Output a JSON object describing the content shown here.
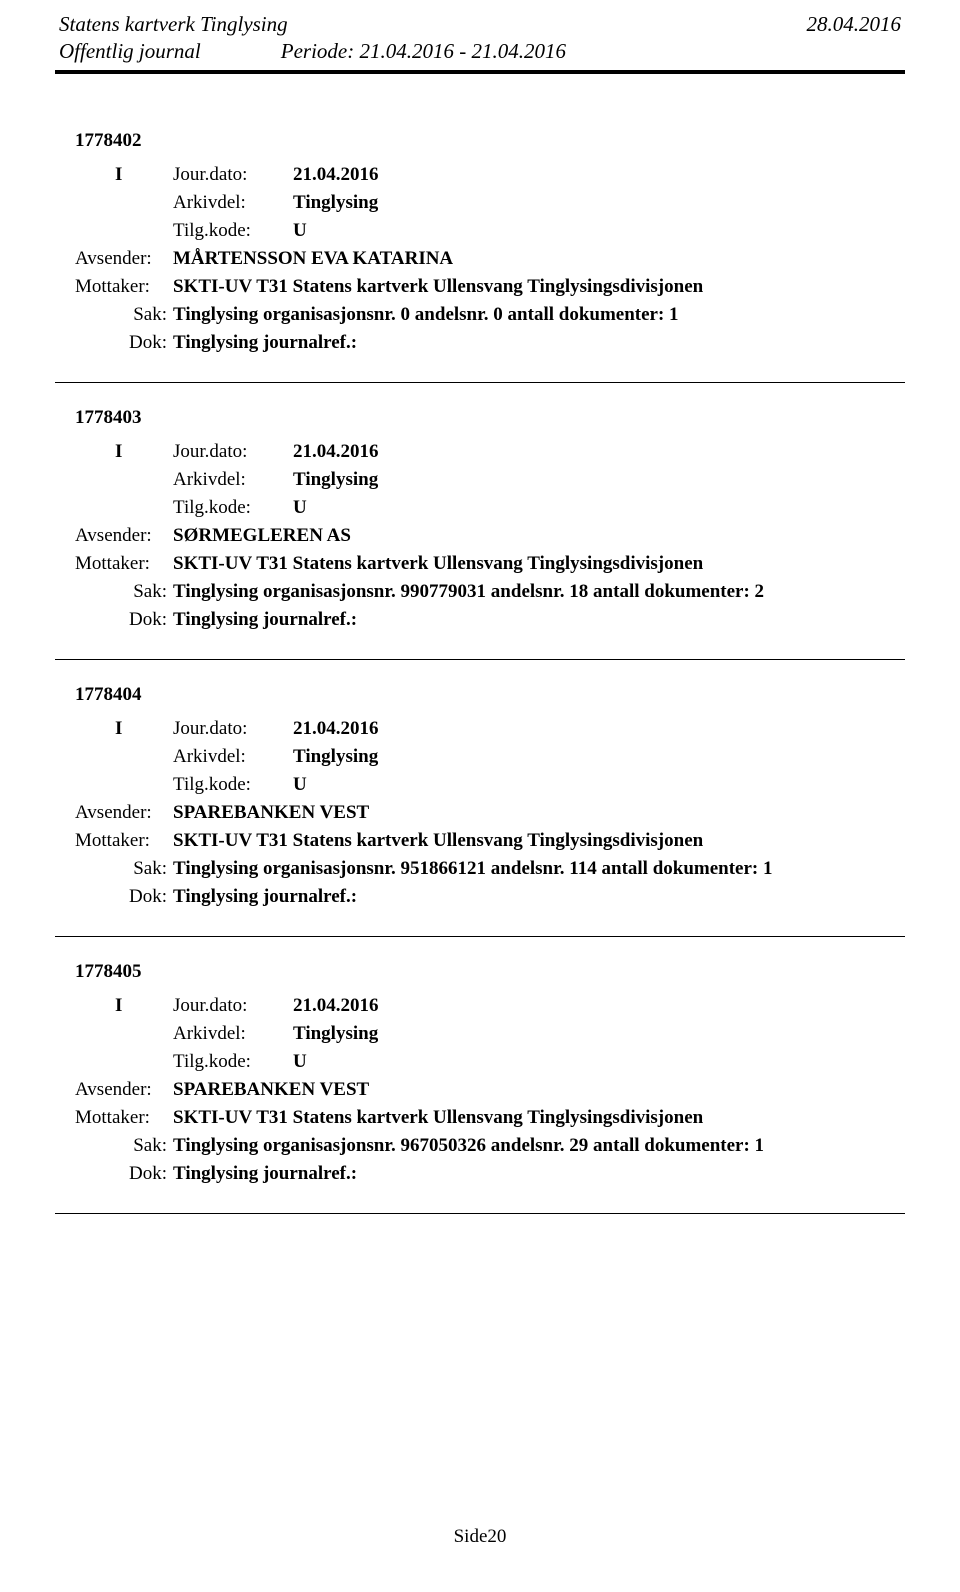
{
  "header": {
    "org": "Statens kartverk Tinglysing",
    "date": "28.04.2016",
    "journal": "Offentlig journal",
    "periode_label": "Periode:",
    "periode_value": "21.04.2016 - 21.04.2016"
  },
  "labels": {
    "jourdato": "Jour.dato:",
    "arkivdel": "Arkivdel:",
    "tilgkode": "Tilg.kode:",
    "avsender": "Avsender:",
    "mottaker": "Mottaker:",
    "sak": "Sak:",
    "dok": "Dok:"
  },
  "entries": [
    {
      "id": "1778402",
      "io": "I",
      "jourdato": "21.04.2016",
      "arkivdel": "Tinglysing",
      "tilgkode": "U",
      "avsender": "MÅRTENSSON EVA KATARINA",
      "mottaker": "SKTI-UV T31 Statens kartverk Ullensvang Tinglysingsdivisjonen",
      "sak": "Tinglysing organisasjonsnr. 0 andelsnr. 0 antall dokumenter: 1",
      "dok": "Tinglysing journalref.:"
    },
    {
      "id": "1778403",
      "io": "I",
      "jourdato": "21.04.2016",
      "arkivdel": "Tinglysing",
      "tilgkode": "U",
      "avsender": "SØRMEGLEREN AS",
      "mottaker": "SKTI-UV T31 Statens kartverk Ullensvang Tinglysingsdivisjonen",
      "sak": "Tinglysing organisasjonsnr. 990779031 andelsnr. 18 antall dokumenter: 2",
      "dok": "Tinglysing journalref.:"
    },
    {
      "id": "1778404",
      "io": "I",
      "jourdato": "21.04.2016",
      "arkivdel": "Tinglysing",
      "tilgkode": "U",
      "avsender": "SPAREBANKEN VEST",
      "mottaker": "SKTI-UV T31 Statens kartverk Ullensvang Tinglysingsdivisjonen",
      "sak": "Tinglysing organisasjonsnr. 951866121 andelsnr. 114 antall dokumenter: 1",
      "dok": "Tinglysing journalref.:"
    },
    {
      "id": "1778405",
      "io": "I",
      "jourdato": "21.04.2016",
      "arkivdel": "Tinglysing",
      "tilgkode": "U",
      "avsender": "SPAREBANKEN VEST",
      "mottaker": "SKTI-UV T31 Statens kartverk Ullensvang Tinglysingsdivisjonen",
      "sak": "Tinglysing organisasjonsnr. 967050326 andelsnr. 29 antall dokumenter: 1",
      "dok": "Tinglysing journalref.:"
    }
  ],
  "footer": {
    "page": "Side20"
  }
}
